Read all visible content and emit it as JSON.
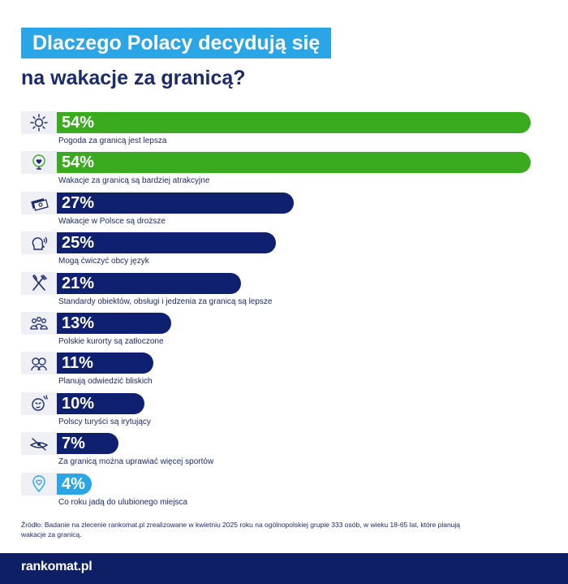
{
  "header": {
    "title_line1": "Dlaczego Polacy decydują się",
    "title_line2": "na wakacje za granicą?"
  },
  "chart_data": {
    "type": "bar",
    "orientation": "horizontal",
    "xlim": [
      0,
      60
    ],
    "categories": [
      "Pogoda za granicą jest lepsza",
      "Wakacje za granicą są bardziej atrakcyjne",
      "Wakacje w Polsce są droższe",
      "Mogą ćwiczyć obcy język",
      "Standardy obiektów, obsługi i jedzenia za granicą są lepsze",
      "Polskie kurorty są zatłoczone",
      "Planują odwiedzić bliskich",
      "Polscy turyści są irytujący",
      "Za granicą można uprawiać więcej sportów",
      "Co roku jadą do ulubionego miejsca"
    ],
    "values": [
      54,
      54,
      27,
      25,
      21,
      13,
      11,
      10,
      7,
      4
    ],
    "labels": [
      "54%",
      "54%",
      "27%",
      "25%",
      "21%",
      "13%",
      "11%",
      "10%",
      "7%",
      "4%"
    ],
    "bar_colors": [
      "#3aaa1e",
      "#3aaa1e",
      "#102071",
      "#102071",
      "#102071",
      "#102071",
      "#102071",
      "#102071",
      "#102071",
      "#2aa6e6"
    ],
    "icons": [
      "sun-icon",
      "globe-heart-icon",
      "money-icon",
      "speaking-head-icon",
      "fork-knife-icon",
      "crowd-icon",
      "family-icon",
      "annoyed-face-icon",
      "kayak-icon",
      "location-pin-heart-icon"
    ]
  },
  "source": {
    "text": "Źródło: Badanie na zlecenie rankomat.pl zrealizowane w kwietniu 2025 roku na ogólnopolskiej grupie 333 osób, w wieku 18-65 lat, które planują wakacje za granicą."
  },
  "footer": {
    "brand": "rankomat.pl",
    "background": "#0f1f66"
  }
}
